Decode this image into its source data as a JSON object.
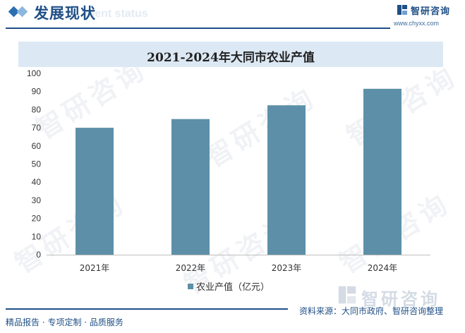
{
  "header": {
    "section_title": "发展现状",
    "section_ghost": "ment status",
    "logo_name": "智研咨询",
    "logo_url": "www.chyxx.com"
  },
  "watermark": "智研咨询",
  "footer": {
    "left_text": "精品报告 · 专项定制 · 品质服务",
    "source_text": "资料来源：大同市政府、智研咨询整理",
    "logo_name": "智研咨询"
  },
  "colors": {
    "bar": "#5d90a8",
    "brand": "#1f4f86",
    "title_band": "#dce9f4"
  },
  "chart_data": {
    "type": "bar",
    "title": "2021-2024年大同市农业产值",
    "categories": [
      "2021年",
      "2022年",
      "2023年",
      "2024年"
    ],
    "series": [
      {
        "name": "农业产值（亿元）",
        "values": [
          70.0,
          74.8,
          82.4,
          91.5
        ]
      }
    ],
    "ylim": [
      0,
      100
    ],
    "yticks": [
      0,
      10,
      20,
      30,
      40,
      50,
      60,
      70,
      80,
      90,
      100
    ],
    "grid": false,
    "legend": "bottom"
  }
}
